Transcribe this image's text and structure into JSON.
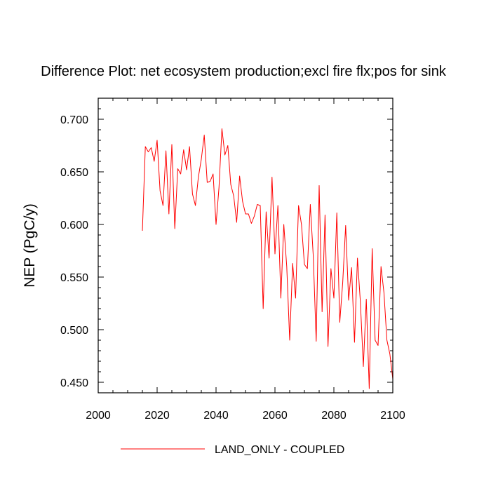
{
  "chart_data": {
    "type": "line",
    "title": "Difference Plot: net ecosystem production;excl fire flx;pos for sink",
    "xlabel": "",
    "ylabel": "NEP  (PgC/y)",
    "xlim": [
      2000,
      2100
    ],
    "ylim": [
      0.44,
      0.72
    ],
    "xticks": [
      2000,
      2020,
      2040,
      2060,
      2080,
      2100
    ],
    "xtick_labels": [
      "2000",
      "2020",
      "2040",
      "2060",
      "2080",
      "2100"
    ],
    "yticks": [
      0.45,
      0.5,
      0.55,
      0.6,
      0.65,
      0.7
    ],
    "ytick_labels": [
      "0.450",
      "0.500",
      "0.550",
      "0.600",
      "0.650",
      "0.700"
    ],
    "grid": false,
    "legend_position": "bottom-center",
    "series": [
      {
        "name": "LAND_ONLY - COUPLED",
        "color": "#ff0000",
        "x": [
          2015,
          2016,
          2017,
          2018,
          2019,
          2020,
          2021,
          2022,
          2023,
          2024,
          2025,
          2026,
          2027,
          2028,
          2029,
          2030,
          2031,
          2032,
          2033,
          2034,
          2035,
          2036,
          2037,
          2038,
          2039,
          2040,
          2041,
          2042,
          2043,
          2044,
          2045,
          2046,
          2047,
          2048,
          2049,
          2050,
          2051,
          2052,
          2053,
          2054,
          2055,
          2056,
          2057,
          2058,
          2059,
          2060,
          2061,
          2062,
          2063,
          2064,
          2065,
          2066,
          2067,
          2068,
          2069,
          2070,
          2071,
          2072,
          2073,
          2074,
          2075,
          2076,
          2077,
          2078,
          2079,
          2080,
          2081,
          2082,
          2083,
          2084,
          2085,
          2086,
          2087,
          2088,
          2089,
          2090,
          2091,
          2092,
          2093,
          2094,
          2095,
          2096,
          2097,
          2098,
          2099,
          2100
        ],
        "y": [
          0.594,
          0.674,
          0.669,
          0.673,
          0.66,
          0.68,
          0.632,
          0.618,
          0.67,
          0.61,
          0.676,
          0.596,
          0.653,
          0.648,
          0.671,
          0.652,
          0.674,
          0.629,
          0.618,
          0.645,
          0.662,
          0.685,
          0.64,
          0.641,
          0.648,
          0.6,
          0.635,
          0.691,
          0.666,
          0.675,
          0.638,
          0.627,
          0.602,
          0.646,
          0.622,
          0.61,
          0.61,
          0.601,
          0.608,
          0.619,
          0.618,
          0.52,
          0.612,
          0.568,
          0.645,
          0.572,
          0.618,
          0.53,
          0.6,
          0.56,
          0.49,
          0.563,
          0.53,
          0.618,
          0.6,
          0.562,
          0.558,
          0.619,
          0.57,
          0.489,
          0.637,
          0.517,
          0.609,
          0.484,
          0.558,
          0.53,
          0.611,
          0.507,
          0.545,
          0.599,
          0.528,
          0.559,
          0.488,
          0.568,
          0.526,
          0.465,
          0.529,
          0.444,
          0.577,
          0.49,
          0.485,
          0.56,
          0.535,
          0.49,
          0.477,
          0.453
        ]
      }
    ]
  }
}
